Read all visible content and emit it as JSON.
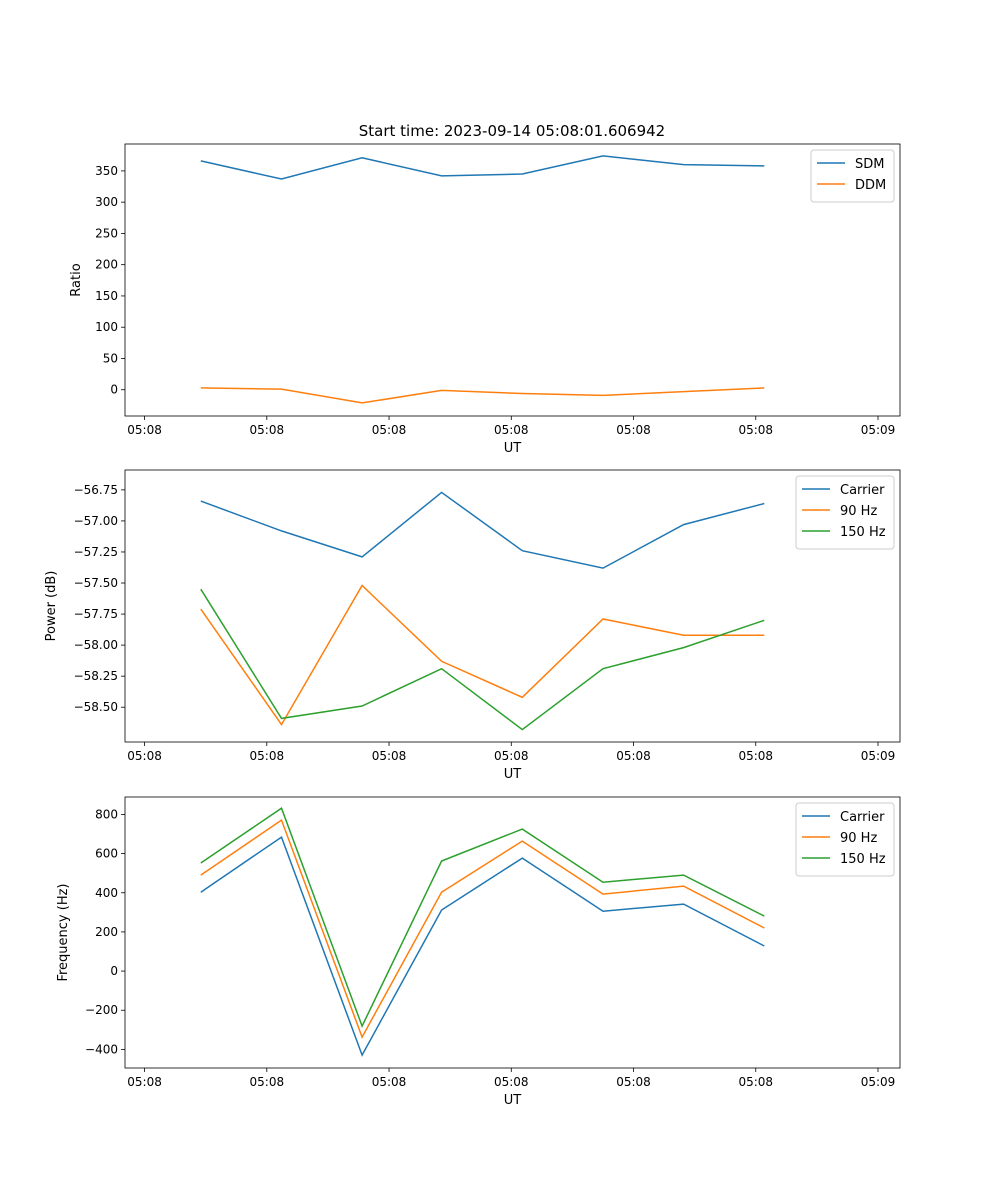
{
  "colors": {
    "c0": "#1f77b4",
    "c1": "#ff7f0e",
    "c2": "#2ca02c"
  },
  "title": "Start time: 2023-09-14 05:08:01.606942",
  "chart_data": [
    {
      "type": "line",
      "title": "Start time: 2023-09-14 05:08:01.606942",
      "xlabel": "UT",
      "ylabel": "Ratio",
      "x_seconds_after_0508": [
        4.6,
        11.2,
        17.8,
        24.3,
        30.9,
        37.5,
        44.1,
        50.7
      ],
      "xlim": [
        -1.6,
        61.8
      ],
      "xticks": [
        0,
        10,
        20,
        30,
        40,
        50,
        60
      ],
      "xtick_labels": [
        "05:08",
        "05:08",
        "05:08",
        "05:08",
        "05:08",
        "05:08",
        "05:09"
      ],
      "ylim": [
        -42,
        393
      ],
      "yticks": [
        0,
        50,
        100,
        150,
        200,
        250,
        300,
        350
      ],
      "ytick_labels": [
        "0",
        "50",
        "100",
        "150",
        "200",
        "250",
        "300",
        "350"
      ],
      "legend_position": "top-right",
      "series": [
        {
          "name": "SDM",
          "color": "#1f77b4",
          "values": [
            366,
            337,
            371,
            342,
            345,
            374,
            360,
            358
          ]
        },
        {
          "name": "DDM",
          "color": "#ff7f0e",
          "values": [
            3,
            1,
            -21,
            -1,
            -6,
            -9,
            -3,
            3
          ]
        }
      ]
    },
    {
      "type": "line",
      "xlabel": "UT",
      "ylabel": "Power (dB)",
      "x_seconds_after_0508": [
        4.6,
        11.2,
        17.8,
        24.3,
        30.9,
        37.5,
        44.1,
        50.7
      ],
      "xlim": [
        -1.6,
        61.8
      ],
      "xticks": [
        0,
        10,
        20,
        30,
        40,
        50,
        60
      ],
      "xtick_labels": [
        "05:08",
        "05:08",
        "05:08",
        "05:08",
        "05:08",
        "05:08",
        "05:09"
      ],
      "ylim": [
        -58.78,
        -56.59
      ],
      "yticks": [
        -58.5,
        -58.25,
        -58.0,
        -57.75,
        -57.5,
        -57.25,
        -57.0,
        -56.75
      ],
      "ytick_labels": [
        "−58.50",
        "−58.25",
        "−58.00",
        "−57.75",
        "−57.50",
        "−57.25",
        "−57.00",
        "−56.75"
      ],
      "legend_position": "top-right",
      "series": [
        {
          "name": "Carrier",
          "color": "#1f77b4",
          "values": [
            -56.84,
            -57.08,
            -57.29,
            -56.77,
            -57.24,
            -57.38,
            -57.03,
            -56.86
          ]
        },
        {
          "name": "90 Hz",
          "color": "#ff7f0e",
          "values": [
            -57.71,
            -58.64,
            -57.52,
            -58.13,
            -58.42,
            -57.79,
            -57.92,
            -57.92
          ]
        },
        {
          "name": "150 Hz",
          "color": "#2ca02c",
          "values": [
            -57.55,
            -58.59,
            -58.49,
            -58.19,
            -58.68,
            -58.19,
            -58.02,
            -57.8
          ]
        }
      ]
    },
    {
      "type": "line",
      "xlabel": "UT",
      "ylabel": "Frequency (Hz)",
      "x_seconds_after_0508": [
        4.6,
        11.2,
        17.8,
        24.3,
        30.9,
        37.5,
        44.1,
        50.7
      ],
      "xlim": [
        -1.6,
        61.8
      ],
      "xticks": [
        0,
        10,
        20,
        30,
        40,
        50,
        60
      ],
      "xtick_labels": [
        "05:08",
        "05:08",
        "05:08",
        "05:08",
        "05:08",
        "05:08",
        "05:09"
      ],
      "ylim": [
        -495,
        889
      ],
      "yticks": [
        -400,
        -200,
        0,
        200,
        400,
        600,
        800
      ],
      "ytick_labels": [
        "−400",
        "−200",
        "0",
        "200",
        "400",
        "600",
        "800"
      ],
      "legend_position": "top-right",
      "series": [
        {
          "name": "Carrier",
          "color": "#1f77b4",
          "values": [
            403,
            684,
            -429,
            312,
            577,
            306,
            342,
            128
          ]
        },
        {
          "name": "90 Hz",
          "color": "#ff7f0e",
          "values": [
            490,
            771,
            -337,
            403,
            664,
            393,
            434,
            220
          ]
        },
        {
          "name": "150 Hz",
          "color": "#2ca02c",
          "values": [
            552,
            832,
            -281,
            562,
            725,
            454,
            490,
            281
          ]
        }
      ]
    }
  ]
}
